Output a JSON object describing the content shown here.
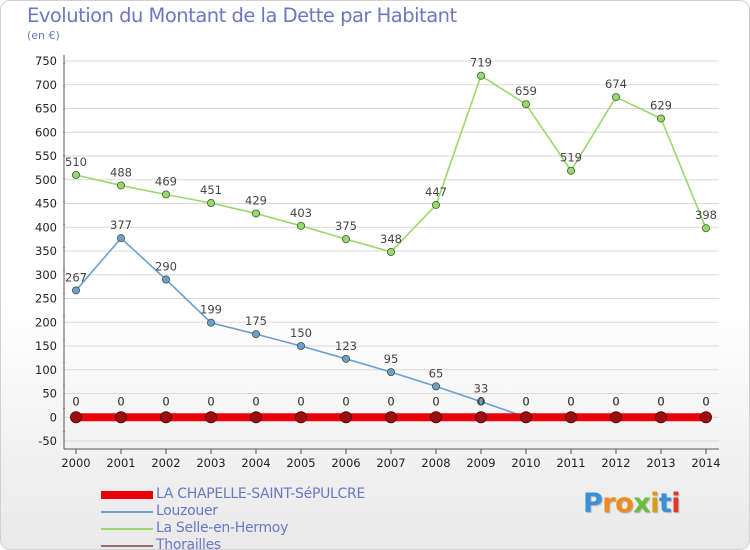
{
  "title": "Evolution du Montant de la Dette par Habitant",
  "subtitle": "(en €)",
  "brand": {
    "text": "Proxiti",
    "colors": [
      "#3a8fd6",
      "#f08a1c",
      "#f08a1c",
      "#6bbf3a",
      "#d4a017",
      "#3a8fd6",
      "#e0352b"
    ]
  },
  "colors": {
    "title": "#6a78c2",
    "background_bottom": "#e9e9ea",
    "grid": "#d9d9d9"
  },
  "chart_data": {
    "type": "line",
    "title": "Evolution du Montant de la Dette par Habitant",
    "ylabel": "(en €)",
    "xlabel": "",
    "x": [
      "2000",
      "2001",
      "2002",
      "2003",
      "2004",
      "2005",
      "2006",
      "2007",
      "2008",
      "2009",
      "2010",
      "2011",
      "2012",
      "2013",
      "2014"
    ],
    "ylim": [
      -50,
      750
    ],
    "yticks": [
      -50,
      0,
      50,
      100,
      150,
      200,
      250,
      300,
      350,
      400,
      450,
      500,
      550,
      600,
      650,
      700,
      750
    ],
    "grid": true,
    "legend_position": "bottom-left",
    "series": [
      {
        "name": "LA CHAPELLE-SAINT-SéPULCRE",
        "color": "#e8000b",
        "values": [
          0,
          0,
          0,
          0,
          0,
          0,
          0,
          0,
          0,
          0,
          0,
          0,
          0,
          0,
          0
        ],
        "labels": [
          "0",
          "0",
          "0",
          "0",
          "0",
          "0",
          "0",
          "0",
          "0",
          "0",
          "0",
          "0",
          "0",
          "0",
          "0"
        ]
      },
      {
        "name": "Louzouer",
        "color": "#6a9fcf",
        "values": [
          267,
          377,
          290,
          199,
          175,
          150,
          123,
          95,
          65,
          33,
          0,
          0,
          0,
          0,
          0
        ],
        "labels": [
          "267",
          "377",
          "290",
          "199",
          "175",
          "150",
          "123",
          "95",
          "65",
          "33",
          "0",
          "0",
          "0",
          "0",
          "0"
        ]
      },
      {
        "name": "La Selle-en-Hermoy",
        "color": "#99d86a",
        "values": [
          510,
          488,
          469,
          451,
          429,
          403,
          375,
          348,
          447,
          719,
          659,
          519,
          674,
          629,
          398
        ],
        "labels": [
          "510",
          "488",
          "469",
          "451",
          "429",
          "403",
          "375",
          "348",
          "447",
          "719",
          "659",
          "519",
          "674",
          "629",
          "398"
        ]
      },
      {
        "name": "Thorailles",
        "color": "#9a6b72",
        "values": [
          0,
          0,
          0,
          0,
          0,
          0,
          0,
          0,
          0,
          0,
          0,
          0,
          0,
          0,
          0
        ],
        "labels": [
          "0",
          "0",
          "0",
          "0",
          "0",
          "0",
          "0",
          "0",
          "0",
          "0",
          "0",
          "0",
          "0",
          "0",
          "0"
        ]
      }
    ]
  }
}
